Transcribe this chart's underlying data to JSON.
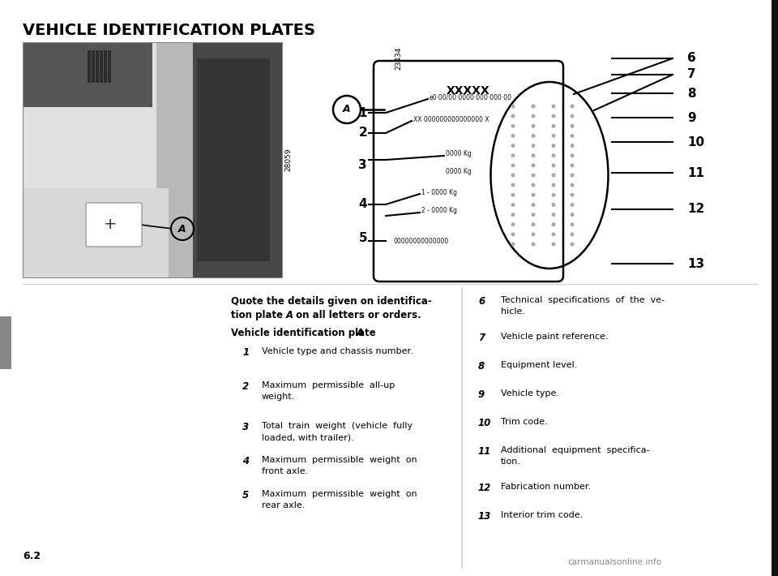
{
  "title": "VEHICLE IDENTIFICATION PLATES",
  "bg_color": "#ffffff",
  "page_number": "6.2",
  "watermark": "carmanualsonline.info",
  "img_number_photo": "28059",
  "img_number_diagram": "23434",
  "left_items": [
    {
      "num": "1",
      "text": "Vehicle type and chassis number."
    },
    {
      "num": "2",
      "text": "Maximum  permissible  all-up\nweight."
    },
    {
      "num": "3",
      "text": "Total  train  weight  (vehicle  fully\nloaded, with trailer)."
    },
    {
      "num": "4",
      "text": "Maximum  permissible  weight  on\nfront axle."
    },
    {
      "num": "5",
      "text": "Maximum  permissible  weight  on\nrear axle."
    }
  ],
  "right_items": [
    {
      "num": "6",
      "text": "Technical  specifications  of  the  ve-\nhicle."
    },
    {
      "num": "7",
      "text": "Vehicle paint reference."
    },
    {
      "num": "8",
      "text": "Equipment level."
    },
    {
      "num": "9",
      "text": "Vehicle type."
    },
    {
      "num": "10",
      "text": "Trim code."
    },
    {
      "num": "11",
      "text": "Additional  equipment  specifica-\ntion."
    },
    {
      "num": "12",
      "text": "Fabrication number."
    },
    {
      "num": "13",
      "text": "Interior trim code."
    }
  ],
  "intro_bold1": "Quote the details given on identifica-",
  "intro_bold2": "tion plate ",
  "intro_italic": "A",
  "intro_bold3": " on all letters or orders.",
  "subhead1": "Vehicle identification plate ",
  "subhead_italic": "A",
  "diag_plate_label": "XXXXX",
  "diag_line1": "e0·00/00·0000·000·000·00",
  "diag_line2": "XX 000000000000000 X",
  "diag_line3a": "0000 Kg",
  "diag_line3b": "0000 Kg",
  "diag_line4a": "1 - 0000 Kg",
  "diag_line4b": "2 - 0000 Kg",
  "diag_line5": "00000000000000",
  "right_labels": [
    "6",
    "7",
    "8",
    "9",
    "10",
    "11",
    "12",
    "13"
  ]
}
